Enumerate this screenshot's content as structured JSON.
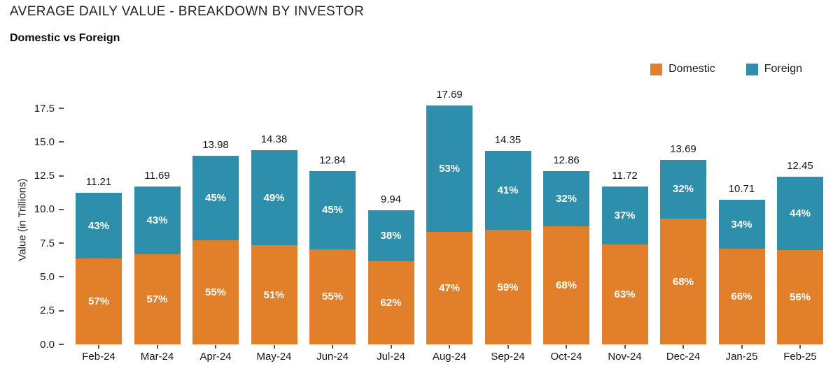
{
  "header": {
    "title": "AVERAGE DAILY VALUE - BREAKDOWN BY INVESTOR",
    "subtitle": "Domestic vs Foreign"
  },
  "legend": [
    {
      "label": "Domestic",
      "color": "#E17F2B"
    },
    {
      "label": "Foreign",
      "color": "#2D8FAB"
    }
  ],
  "chart_data": {
    "type": "bar",
    "stacked": true,
    "title": "AVERAGE DAILY VALUE - BREAKDOWN BY INVESTOR",
    "subtitle": "Domestic vs Foreign",
    "categories": [
      "Feb-24",
      "Mar-24",
      "Apr-24",
      "May-24",
      "Jun-24",
      "Jul-24",
      "Aug-24",
      "Sep-24",
      "Oct-24",
      "Nov-24",
      "Dec-24",
      "Jan-25",
      "Feb-25"
    ],
    "totals": [
      11.21,
      11.69,
      13.98,
      14.38,
      12.84,
      9.94,
      17.69,
      14.35,
      12.86,
      11.72,
      13.69,
      10.71,
      12.45
    ],
    "series": [
      {
        "name": "Domestic",
        "color": "#E17F2B",
        "pct": [
          57,
          57,
          55,
          51,
          55,
          62,
          47,
          59,
          68,
          63,
          68,
          66,
          56
        ]
      },
      {
        "name": "Foreign",
        "color": "#2D8FAB",
        "pct": [
          43,
          43,
          45,
          49,
          45,
          38,
          53,
          41,
          32,
          37,
          32,
          34,
          44
        ]
      }
    ],
    "xlabel": "",
    "ylabel": "Value (in Trillions)",
    "yticks": [
      "0.0",
      "2.5",
      "5.0",
      "7.5",
      "10.0",
      "12.5",
      "15.0",
      "17.5"
    ],
    "ylim": [
      0,
      17.5
    ],
    "grid": false,
    "legend_position": "top-right"
  }
}
